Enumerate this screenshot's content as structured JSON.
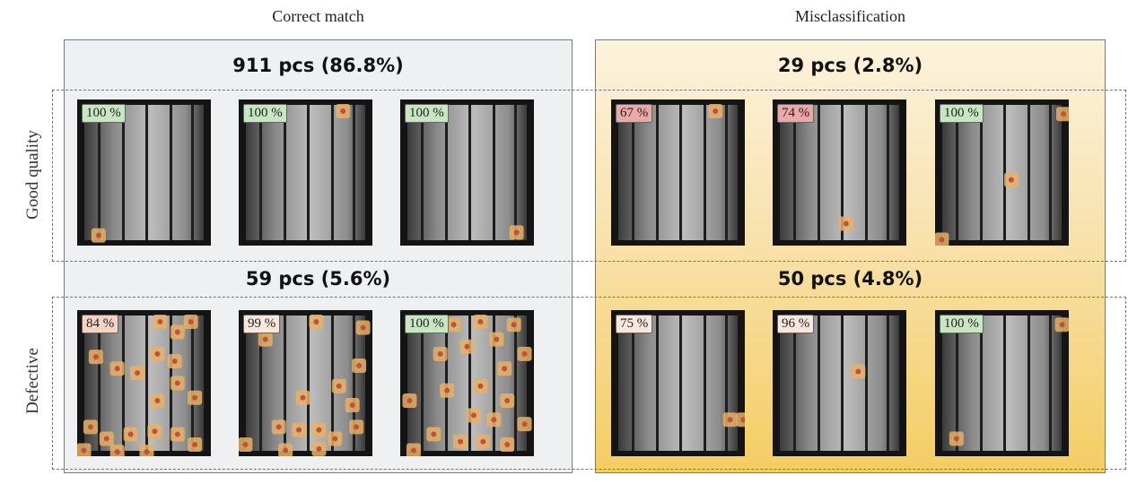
{
  "columns": {
    "correct": "Correct match",
    "misclass": "Misclassification"
  },
  "rows": {
    "good": "Good quality",
    "defective": "Defective"
  },
  "counts": {
    "correct_good": "911 pcs (86.8%)",
    "misclass_good": "29 pcs (2.8%)",
    "correct_def": "59 pcs (5.6%)",
    "misclass_def": "50 pcs (4.8%)"
  },
  "colors": {
    "conf_high": "#c9e6c2",
    "conf_low": "#eea7a7",
    "conf_mid": "#f6d2c4",
    "conf_pale": "#f9e6dc",
    "heat": "#e8b266",
    "heat_core": "#c2503d"
  },
  "cells": [
    {
      "id": "cg1",
      "conf": "100 %",
      "tone": "conf_high",
      "hot": [
        [
          0.16,
          0.93
        ]
      ]
    },
    {
      "id": "cg2",
      "conf": "100 %",
      "tone": "conf_high",
      "hot": [
        [
          0.78,
          0.08
        ]
      ]
    },
    {
      "id": "cg3",
      "conf": "100 %",
      "tone": "conf_high",
      "hot": [
        [
          0.87,
          0.91
        ]
      ]
    },
    {
      "id": "mg1",
      "conf": "67 %",
      "tone": "conf_low",
      "hot": [
        [
          0.78,
          0.08
        ]
      ]
    },
    {
      "id": "mg2",
      "conf": "74 %",
      "tone": "conf_low",
      "hot": [
        [
          0.55,
          0.85
        ]
      ]
    },
    {
      "id": "mg3",
      "conf": "100 %",
      "tone": "conf_high",
      "hot": [
        [
          0.96,
          0.1
        ],
        [
          0.57,
          0.55
        ],
        [
          0.05,
          0.96
        ]
      ]
    },
    {
      "id": "cd1",
      "conf": "84 %",
      "tone": "conf_mid",
      "hot": [
        [
          0.14,
          0.32
        ],
        [
          0.3,
          0.4
        ],
        [
          0.45,
          0.43
        ],
        [
          0.62,
          0.08
        ],
        [
          0.75,
          0.15
        ],
        [
          0.85,
          0.08
        ],
        [
          0.6,
          0.3
        ],
        [
          0.73,
          0.35
        ],
        [
          0.75,
          0.5
        ],
        [
          0.6,
          0.62
        ],
        [
          0.88,
          0.6
        ],
        [
          0.1,
          0.8
        ],
        [
          0.22,
          0.88
        ],
        [
          0.4,
          0.85
        ],
        [
          0.58,
          0.83
        ],
        [
          0.75,
          0.85
        ],
        [
          0.88,
          0.92
        ],
        [
          0.05,
          0.96
        ],
        [
          0.3,
          0.97
        ],
        [
          0.52,
          0.97
        ]
      ]
    },
    {
      "id": "cd2",
      "conf": "99 %",
      "tone": "conf_pale",
      "hot": [
        [
          0.2,
          0.2
        ],
        [
          0.58,
          0.08
        ],
        [
          0.93,
          0.12
        ],
        [
          0.9,
          0.38
        ],
        [
          0.75,
          0.52
        ],
        [
          0.48,
          0.6
        ],
        [
          0.85,
          0.65
        ],
        [
          0.3,
          0.8
        ],
        [
          0.45,
          0.82
        ],
        [
          0.6,
          0.82
        ],
        [
          0.72,
          0.88
        ],
        [
          0.88,
          0.8
        ],
        [
          0.05,
          0.92
        ],
        [
          0.35,
          0.96
        ],
        [
          0.6,
          0.95
        ]
      ]
    },
    {
      "id": "cd3",
      "conf": "100 %",
      "tone": "conf_high",
      "hot": [
        [
          0.4,
          0.1
        ],
        [
          0.6,
          0.08
        ],
        [
          0.85,
          0.1
        ],
        [
          0.3,
          0.3
        ],
        [
          0.5,
          0.25
        ],
        [
          0.72,
          0.2
        ],
        [
          0.93,
          0.3
        ],
        [
          0.78,
          0.4
        ],
        [
          0.07,
          0.62
        ],
        [
          0.35,
          0.55
        ],
        [
          0.6,
          0.52
        ],
        [
          0.8,
          0.62
        ],
        [
          0.93,
          0.78
        ],
        [
          0.55,
          0.72
        ],
        [
          0.7,
          0.75
        ],
        [
          0.25,
          0.85
        ],
        [
          0.45,
          0.9
        ],
        [
          0.62,
          0.9
        ],
        [
          0.8,
          0.92
        ],
        [
          0.1,
          0.96
        ]
      ]
    },
    {
      "id": "md1",
      "conf": "75 %",
      "tone": "conf_pale",
      "hot": [
        [
          0.89,
          0.75
        ],
        [
          0.99,
          0.75
        ]
      ]
    },
    {
      "id": "md2",
      "conf": "96 %",
      "tone": "conf_pale",
      "hot": [
        [
          0.64,
          0.42
        ]
      ]
    },
    {
      "id": "md3",
      "conf": "100 %",
      "tone": "conf_high",
      "hot": [
        [
          0.95,
          0.1
        ],
        [
          0.16,
          0.88
        ]
      ]
    }
  ]
}
